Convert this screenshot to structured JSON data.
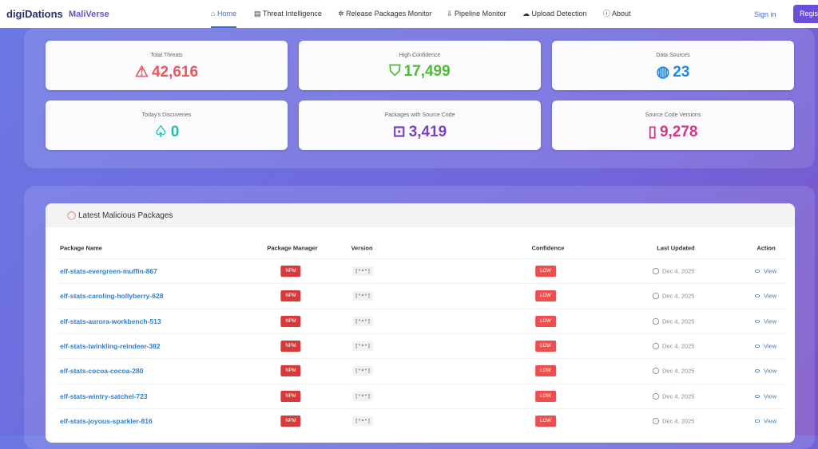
{
  "nav": {
    "brand": "digiDations",
    "product": "MaliVerse",
    "links": [
      "Home",
      "Threat Intelligence",
      "Release Packages Monitor",
      "Pipeline Monitor",
      "Upload Detection",
      "About"
    ],
    "sign_in": "Sign in",
    "register": "Register"
  },
  "stats": [
    {
      "label": "Total Threats",
      "value": "42,616"
    },
    {
      "label": "High Confidence",
      "value": "17,499"
    },
    {
      "label": "Data Sources",
      "value": "23"
    },
    {
      "label": "Today's Discoveries",
      "value": "0"
    },
    {
      "label": "Packages with Source Code",
      "value": "3,419"
    },
    {
      "label": "Source Code Versions",
      "value": "9,278"
    }
  ],
  "table": {
    "title": "Latest Malicious Packages",
    "headers": [
      "Package Name",
      "Package Manager",
      "Version",
      "Confidence",
      "Last Updated",
      "Action"
    ],
    "rows": [
      [
        "elf-stats-evergreen-muffin-867",
        "NPM",
        "[\"*\"]",
        "LOW",
        "Dec 4, 2025",
        "View"
      ],
      [
        "elf-stats-caroling-hollyberry-628",
        "NPM",
        "[\"*\"]",
        "LOW",
        "Dec 4, 2025",
        "View"
      ],
      [
        "elf-stats-aurora-workbench-513",
        "NPM",
        "[\"*\"]",
        "LOW",
        "Dec 4, 2025",
        "View"
      ],
      [
        "elf-stats-twinkling-reindeer-382",
        "NPM",
        "[\"*\"]",
        "LOW",
        "Dec 4, 2025",
        "View"
      ],
      [
        "elf-stats-cocoa-cocoa-280",
        "NPM",
        "[\"*\"]",
        "LOW",
        "Dec 4, 2025",
        "View"
      ],
      [
        "elf-stats-wintry-satchel-723",
        "NPM",
        "[\"*\"]",
        "LOW",
        "Dec 4, 2025",
        "View"
      ],
      [
        "elf-stats-joyous-sparkler-816",
        "NPM",
        "[\"*\"]",
        "LOW",
        "Dec 4, 2025",
        "View"
      ]
    ]
  }
}
